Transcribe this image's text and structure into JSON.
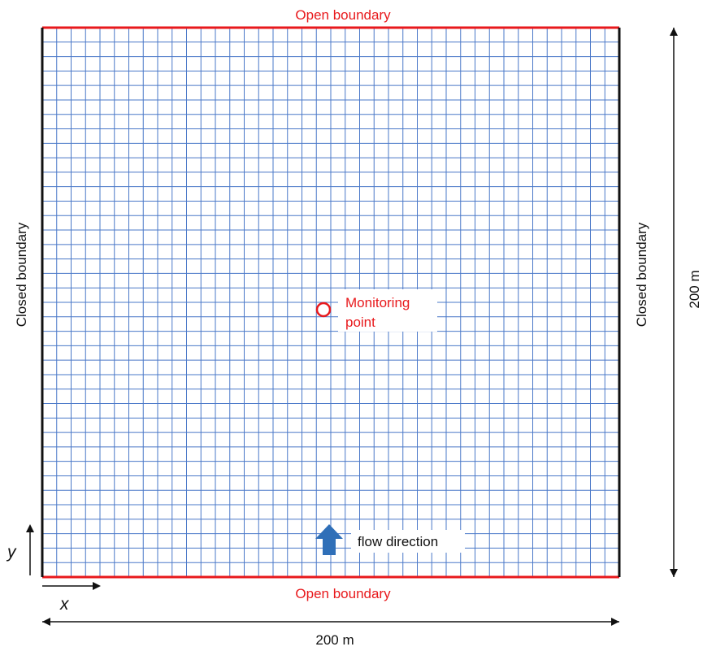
{
  "labels": {
    "top_boundary": "Open boundary",
    "bottom_boundary": "Open boundary",
    "left_boundary": "Closed boundary",
    "right_boundary": "Closed boundary",
    "monitoring_line1": "Monitoring",
    "monitoring_line2": "point",
    "flow_direction": "flow direction",
    "width_dimension": "200 m",
    "height_dimension": "200 m",
    "x_axis": "x",
    "y_axis": "y"
  },
  "grid": {
    "cells_x": 40,
    "cells_y": 38
  },
  "colors": {
    "grid_line": "#4a78c8",
    "open_boundary": "#e8191c",
    "closed_boundary": "#111111",
    "monitoring_point": "#e8191c",
    "flow_arrow": "#2f6fb8"
  },
  "icons": {
    "flow": "up-arrow-icon",
    "monitor": "circle-marker-icon"
  }
}
